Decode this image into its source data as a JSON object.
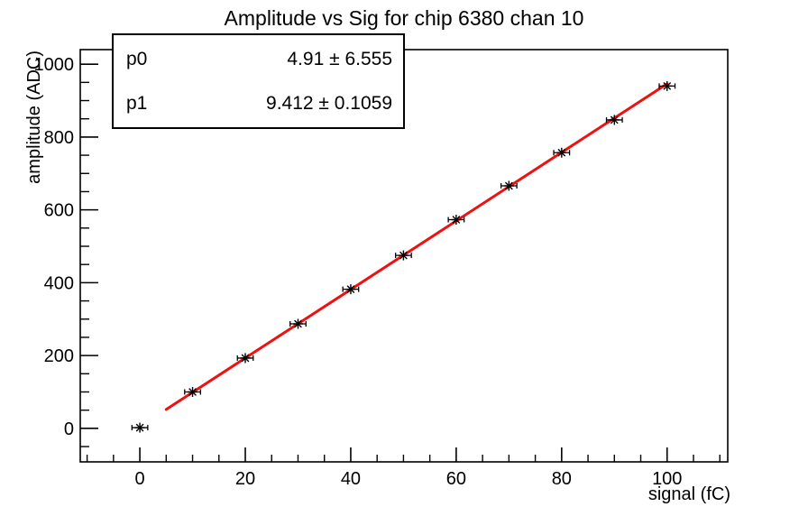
{
  "title": "Amplitude vs Sig for chip 6380 chan 10",
  "stats_box": {
    "rows": [
      {
        "param": "p0",
        "value_text": "4.91 ± 6.555"
      },
      {
        "param": "p1",
        "value_text": "9.412 ± 0.1059"
      }
    ]
  },
  "chart_data": {
    "type": "scatter",
    "title": "Amplitude vs Sig for chip 6380 chan 10",
    "xlabel": "signal (fC)",
    "ylabel": "amplitude (ADC)",
    "xlim": [
      -11.3,
      111.5
    ],
    "ylim": [
      -92,
      1040
    ],
    "x_major_ticks": [
      0,
      20,
      40,
      60,
      80,
      100
    ],
    "x_minor_step": 5,
    "y_major_ticks": [
      0,
      200,
      400,
      600,
      800,
      1000
    ],
    "y_minor_step": 50,
    "grid": false,
    "legend": false,
    "marker": "asterisk-with-x-error-bars",
    "points": {
      "x": [
        0,
        10,
        20,
        30,
        40,
        50,
        60,
        70,
        80,
        90,
        100
      ],
      "y": [
        2,
        100,
        193,
        287,
        382,
        475,
        573,
        666,
        757,
        847,
        940
      ],
      "xerr": 1.5
    },
    "fit": {
      "p0": 4.91,
      "p0_err": 6.555,
      "p1": 9.412,
      "p1_err": 0.1059,
      "x_range": [
        5,
        100
      ]
    },
    "colors": {
      "fit_line": "#ee1111",
      "marker": "#000000",
      "axes": "#000000",
      "background": "#ffffff"
    }
  }
}
